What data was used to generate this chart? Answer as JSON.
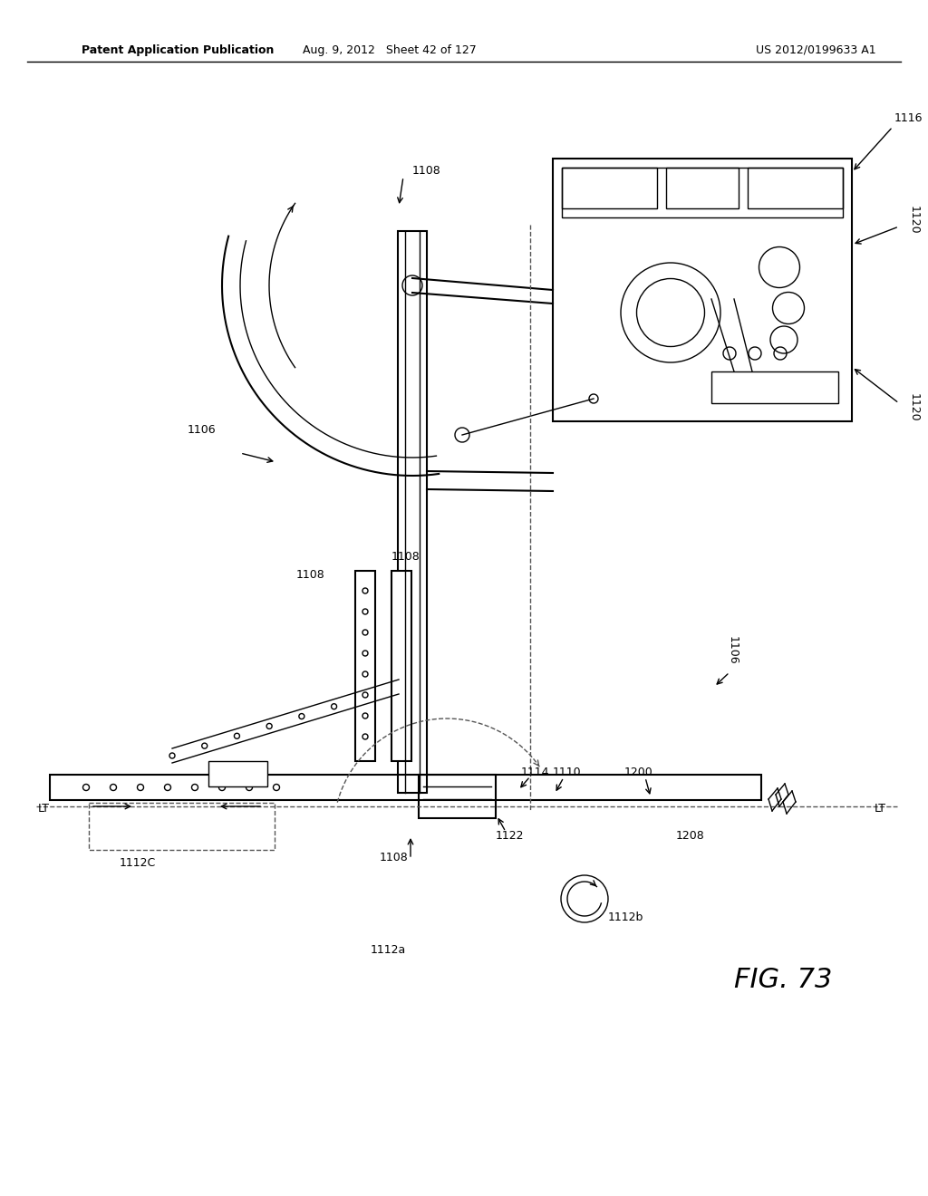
{
  "title_left": "Patent Application Publication",
  "title_center": "Aug. 9, 2012   Sheet 42 of 127",
  "title_right": "US 2012/0199633 A1",
  "fig_label": "FIG. 73",
  "background_color": "#ffffff",
  "line_color": "#000000",
  "labels": {
    "1108_top": "1108",
    "1106_top": "1106",
    "1116": "1116",
    "1120_top": "1120",
    "1120_bot": "1120",
    "1106_mid": "1106",
    "1108_mid1": "1108",
    "1108_mid2": "1108",
    "1114": "1114",
    "1110": "1110",
    "1200": "1200",
    "1108_bot": "1108",
    "1122": "1122",
    "1208": "1208",
    "1112b": "1112b",
    "1112a": "1112a",
    "1112C": "1112C",
    "LT_left": "LT",
    "LT_right": "LT"
  }
}
